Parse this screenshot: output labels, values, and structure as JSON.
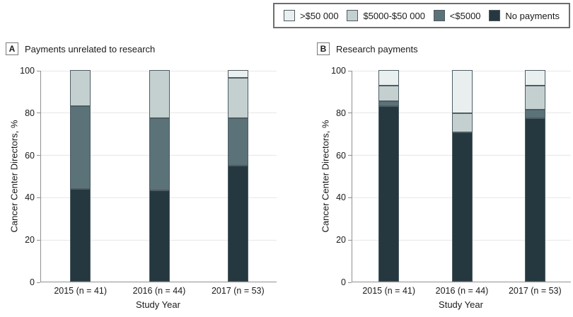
{
  "legend": {
    "items": [
      {
        "key": "gt50000",
        "label": ">$50 000",
        "color": "#e9efef"
      },
      {
        "key": "5000-50000",
        "label": "$5000-$50 000",
        "color": "#c4d0d0"
      },
      {
        "key": "lt5000",
        "label": "<$5000",
        "color": "#5b7278"
      },
      {
        "key": "no-payments",
        "label": "No payments",
        "color": "#26383f"
      }
    ]
  },
  "panels": [
    {
      "letter": "A",
      "title": "Payments unrelated to research"
    },
    {
      "letter": "B",
      "title": "Research payments"
    }
  ],
  "chart_data": [
    {
      "type": "bar",
      "stacked": true,
      "title": "Payments unrelated to research",
      "categories": [
        "2015 (n = 41)",
        "2016 (n = 44)",
        "2017 (n = 53)"
      ],
      "xlabel": "Study Year",
      "ylabel": "Cancer Center Directors, %",
      "ylim": [
        0,
        100
      ],
      "yticks": [
        0,
        20,
        40,
        60,
        80,
        100
      ],
      "grid": true,
      "legend_position": "top-right",
      "series": [
        {
          "name": "No payments",
          "color": "#26383f",
          "values": [
            43.9,
            43.2,
            54.7
          ]
        },
        {
          "name": "<$5000",
          "color": "#5b7278",
          "values": [
            39.0,
            34.1,
            22.6
          ]
        },
        {
          "name": "$5000-$50 000",
          "color": "#c4d0d0",
          "values": [
            17.1,
            22.7,
            18.9
          ]
        },
        {
          "name": ">$50 000",
          "color": "#e9efef",
          "values": [
            0,
            0,
            3.8
          ]
        }
      ]
    },
    {
      "type": "bar",
      "stacked": true,
      "title": "Research payments",
      "categories": [
        "2015 (n = 41)",
        "2016 (n = 44)",
        "2017 (n = 53)"
      ],
      "xlabel": "Study Year",
      "ylabel": "Cancer Center Directors, %",
      "ylim": [
        0,
        100
      ],
      "yticks": [
        0,
        20,
        40,
        60,
        80,
        100
      ],
      "grid": true,
      "series": [
        {
          "name": "No payments",
          "color": "#26383f",
          "values": [
            82.9,
            70.5,
            77.4
          ]
        },
        {
          "name": "<$5000",
          "color": "#5b7278",
          "values": [
            2.4,
            0,
            3.8
          ]
        },
        {
          "name": "$5000-$50 000",
          "color": "#c4d0d0",
          "values": [
            7.3,
            9.1,
            11.3
          ]
        },
        {
          "name": ">$50 000",
          "color": "#e9efef",
          "values": [
            7.3,
            20.5,
            7.5
          ]
        }
      ]
    }
  ]
}
